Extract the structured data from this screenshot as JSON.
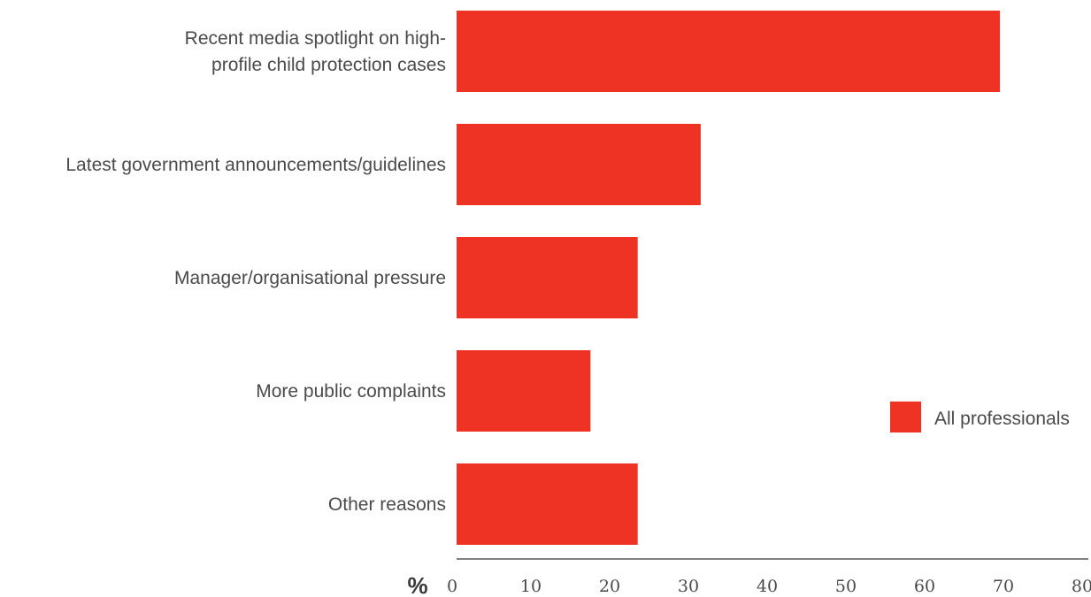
{
  "chart_data": {
    "type": "bar",
    "orientation": "horizontal",
    "categories": [
      "Recent media spotlight on high-profile child protection cases",
      "Latest government announcements/guidelines",
      "Manager/organisational pressure",
      "More public complaints",
      "Other reasons"
    ],
    "category_lines": [
      [
        "Recent media spotlight on high-",
        "profile child protection cases"
      ],
      [
        "Latest government announcements/guidelines"
      ],
      [
        "Manager/organisational pressure"
      ],
      [
        "More public complaints"
      ],
      [
        "Other reasons"
      ]
    ],
    "series": [
      {
        "name": "All professionals",
        "values": [
          69,
          31,
          23,
          17,
          23
        ],
        "color": "#ee3224"
      }
    ],
    "x_unit_label": "%",
    "xlim": [
      0,
      80
    ],
    "x_ticks": [
      "0",
      "10",
      "20",
      "30",
      "40",
      "50",
      "60",
      "70",
      "80"
    ],
    "grid": false,
    "legend_position": "right"
  }
}
